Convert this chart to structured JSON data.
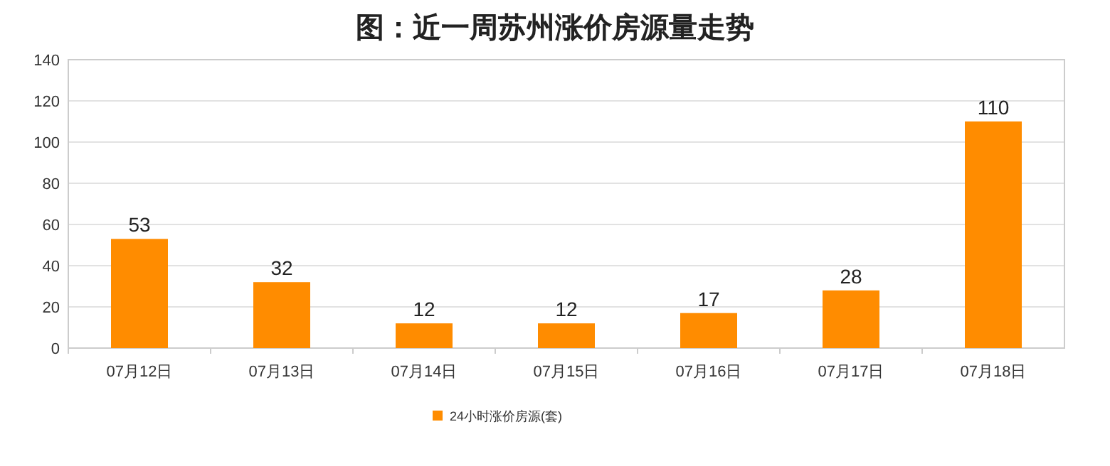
{
  "chart_data": {
    "type": "bar",
    "title": "图：近一周苏州涨价房源量走势",
    "categories": [
      "07月12日",
      "07月13日",
      "07月14日",
      "07月15日",
      "07月16日",
      "07月17日",
      "07月18日"
    ],
    "series": [
      {
        "name": "24小时涨价房源(套)",
        "color": "#ff8c00",
        "values": [
          53,
          32,
          12,
          12,
          17,
          28,
          110
        ]
      }
    ],
    "ylim": [
      0,
      140
    ],
    "yticks": [
      0,
      20,
      40,
      60,
      80,
      100,
      120,
      140
    ],
    "grid": "y",
    "legend": "bottom",
    "data_labels": true
  }
}
